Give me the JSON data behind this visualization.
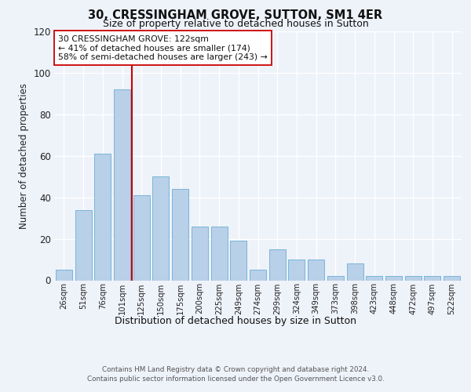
{
  "title_line1": "30, CRESSINGHAM GROVE, SUTTON, SM1 4ER",
  "title_line2": "Size of property relative to detached houses in Sutton",
  "xlabel": "Distribution of detached houses by size in Sutton",
  "ylabel": "Number of detached properties",
  "categories": [
    "26sqm",
    "51sqm",
    "76sqm",
    "101sqm",
    "125sqm",
    "150sqm",
    "175sqm",
    "200sqm",
    "225sqm",
    "249sqm",
    "274sqm",
    "299sqm",
    "324sqm",
    "349sqm",
    "373sqm",
    "398sqm",
    "423sqm",
    "448sqm",
    "472sqm",
    "497sqm",
    "522sqm"
  ],
  "values": [
    5,
    34,
    61,
    92,
    41,
    50,
    44,
    26,
    26,
    19,
    5,
    15,
    10,
    10,
    2,
    8,
    2,
    2,
    2,
    2,
    2
  ],
  "bar_color": "#b8d0e8",
  "bar_edge_color": "#6aaed6",
  "vline_color": "#cc0000",
  "annotation_text": "30 CRESSINGHAM GROVE: 122sqm\n← 41% of detached houses are smaller (174)\n58% of semi-detached houses are larger (243) →",
  "annotation_box_edge": "#cc0000",
  "ylim": [
    0,
    120
  ],
  "yticks": [
    0,
    20,
    40,
    60,
    80,
    100,
    120
  ],
  "background_color": "#eef2f9",
  "grid_color": "#ffffff",
  "footer_line1": "Contains HM Land Registry data © Crown copyright and database right 2024.",
  "footer_line2": "Contains public sector information licensed under the Open Government Licence v3.0."
}
